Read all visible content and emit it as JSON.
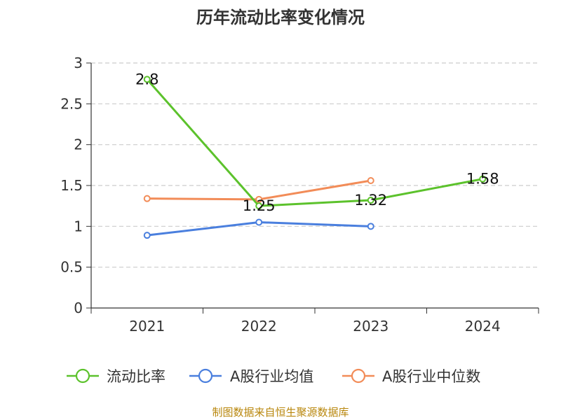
{
  "chart_data": {
    "type": "line",
    "title": "历年流动比率变化情况",
    "categories": [
      "2021",
      "2022",
      "2023",
      "2024"
    ],
    "ylim": [
      0,
      3
    ],
    "yticks": [
      0,
      0.5,
      1,
      1.5,
      2,
      2.5,
      3
    ],
    "ytick_labels": [
      "0",
      "0.5",
      "1",
      "1.5",
      "2",
      "2.5",
      "3"
    ],
    "grid": true,
    "legend_position": "bottom",
    "series": [
      {
        "name": "流动比率",
        "color": "#5cc22c",
        "values": [
          2.8,
          1.25,
          1.32,
          1.58
        ],
        "labels": [
          "2.8",
          "1.25",
          "1.32",
          "1.58"
        ]
      },
      {
        "name": "A股行业均值",
        "color": "#4a7fde",
        "values": [
          0.89,
          1.05,
          1.0,
          null
        ]
      },
      {
        "name": "A股行业中位数",
        "color": "#f28c58",
        "values": [
          1.34,
          1.33,
          1.56,
          null
        ]
      }
    ],
    "source": "制图数据来自恒生聚源数据库"
  }
}
